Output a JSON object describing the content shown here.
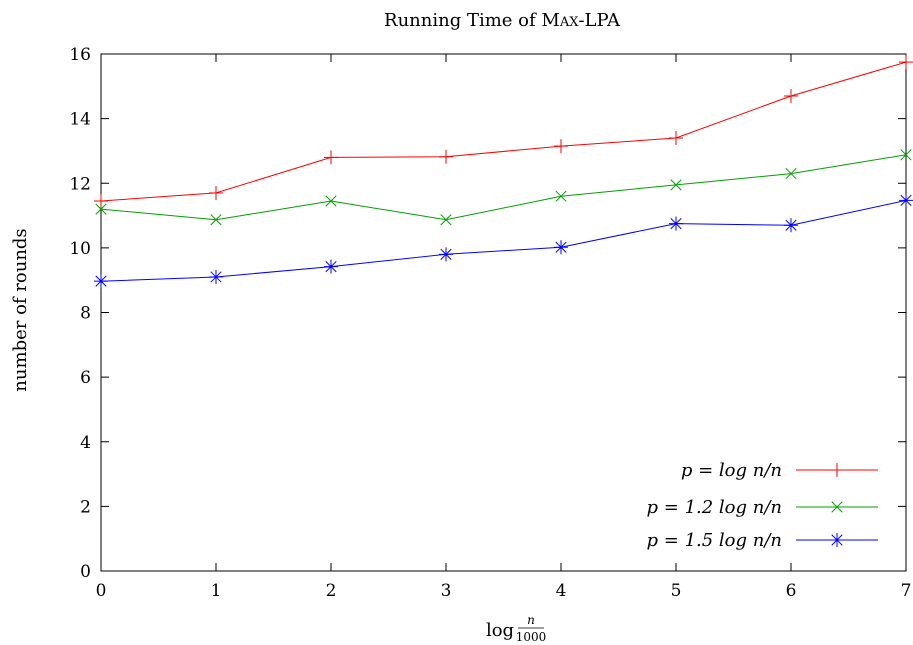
{
  "chart_data": {
    "type": "line",
    "title": "Running Time of Max-LPA",
    "xlabel": "log n/1000",
    "ylabel": "number of rounds",
    "xlim": [
      0,
      7
    ],
    "ylim": [
      0,
      16
    ],
    "xticks": [
      "0",
      "1",
      "2",
      "3",
      "4",
      "5",
      "6",
      "7"
    ],
    "yticks": [
      "0",
      "2",
      "4",
      "6",
      "8",
      "10",
      "12",
      "14",
      "16"
    ],
    "grid": false,
    "legend_position": "bottom-right",
    "x": [
      0,
      1,
      2,
      3,
      4,
      5,
      6,
      7
    ],
    "series": [
      {
        "name": "p = log n/n",
        "color": "#ff0000",
        "marker": "plus",
        "values": [
          11.45,
          11.7,
          12.8,
          12.82,
          13.15,
          13.4,
          14.7,
          15.75
        ]
      },
      {
        "name": "p = 1.2 log n/n",
        "color": "#00a000",
        "marker": "cross",
        "values": [
          11.2,
          10.87,
          11.45,
          10.87,
          11.6,
          11.95,
          12.3,
          12.88
        ]
      },
      {
        "name": "p = 1.5 log n/n",
        "color": "#0000ff",
        "marker": "star",
        "values": [
          8.97,
          9.1,
          9.42,
          9.8,
          10.02,
          10.75,
          10.7,
          11.47
        ]
      }
    ]
  }
}
